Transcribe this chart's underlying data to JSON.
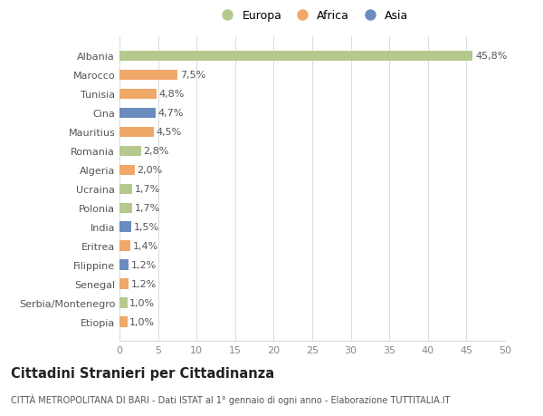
{
  "categories": [
    "Albania",
    "Marocco",
    "Tunisia",
    "Cina",
    "Mauritius",
    "Romania",
    "Algeria",
    "Ucraina",
    "Polonia",
    "India",
    "Eritrea",
    "Filippine",
    "Senegal",
    "Serbia/Montenegro",
    "Etiopia"
  ],
  "values": [
    45.8,
    7.5,
    4.8,
    4.7,
    4.5,
    2.8,
    2.0,
    1.7,
    1.7,
    1.5,
    1.4,
    1.2,
    1.2,
    1.0,
    1.0
  ],
  "labels": [
    "45,8%",
    "7,5%",
    "4,8%",
    "4,7%",
    "4,5%",
    "2,8%",
    "2,0%",
    "1,7%",
    "1,7%",
    "1,5%",
    "1,4%",
    "1,2%",
    "1,2%",
    "1,0%",
    "1,0%"
  ],
  "continent": [
    "Europa",
    "Africa",
    "Africa",
    "Asia",
    "Africa",
    "Europa",
    "Africa",
    "Europa",
    "Europa",
    "Asia",
    "Africa",
    "Asia",
    "Africa",
    "Europa",
    "Africa"
  ],
  "colors": {
    "Europa": "#b5c98e",
    "Africa": "#f0a868",
    "Asia": "#6b8cbf"
  },
  "legend_labels": [
    "Europa",
    "Africa",
    "Asia"
  ],
  "legend_colors": [
    "#b5c98e",
    "#f0a868",
    "#6b8cbf"
  ],
  "xlim": [
    0,
    50
  ],
  "xticks": [
    0,
    5,
    10,
    15,
    20,
    25,
    30,
    35,
    40,
    45,
    50
  ],
  "title": "Cittadini Stranieri per Cittadinanza",
  "subtitle": "CITTÀ METROPOLITANA DI BARI - Dati ISTAT al 1° gennaio di ogni anno - Elaborazione TUTTITALIA.IT",
  "bg_color": "#ffffff",
  "grid_color": "#dddddd",
  "bar_height": 0.55,
  "label_fontsize": 8,
  "ytick_fontsize": 8,
  "xtick_fontsize": 8,
  "title_fontsize": 10.5,
  "subtitle_fontsize": 7
}
